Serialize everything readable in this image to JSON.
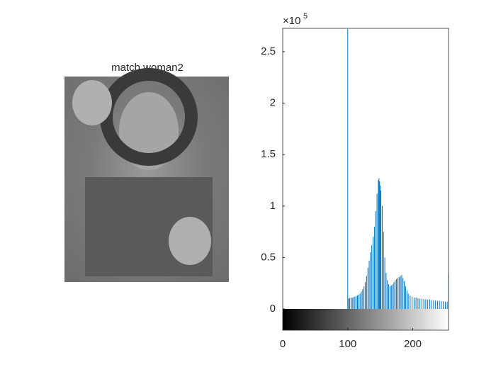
{
  "image_panel": {
    "title": "match woman2"
  },
  "chart_data": {
    "type": "histogram-stem",
    "color": "#0072BD",
    "y_exponent_base": "×10",
    "y_exponent": "5",
    "xlim": [
      0,
      255
    ],
    "xticks": [
      0,
      100,
      200
    ],
    "ylim": [
      0,
      272700
    ],
    "yticks": [
      0,
      {
        "value": 50000,
        "label": "0.5"
      },
      {
        "value": 100000,
        "label": "1"
      },
      {
        "value": 150000,
        "label": "1.5"
      },
      {
        "value": 200000,
        "label": "2"
      },
      {
        "value": 250000,
        "label": "2.5"
      }
    ],
    "colorbar": true,
    "x": [
      100,
      101,
      103,
      105,
      107,
      109,
      111,
      113,
      115,
      117,
      119,
      121,
      123,
      125,
      127,
      129,
      131,
      133,
      135,
      137,
      139,
      141,
      143,
      145,
      147,
      148,
      149,
      150,
      151,
      153,
      155,
      157,
      159,
      161,
      163,
      165,
      167,
      169,
      171,
      173,
      175,
      177,
      179,
      181,
      183,
      185,
      187,
      189,
      191,
      193,
      196,
      199,
      202,
      205,
      208,
      211,
      214,
      217,
      220,
      223,
      226,
      229,
      232,
      235,
      238,
      241,
      244,
      247,
      250,
      253,
      255
    ],
    "values": [
      272000,
      10000,
      10500,
      11000,
      11000,
      11500,
      12000,
      12500,
      13000,
      14000,
      15000,
      17000,
      19000,
      22000,
      26000,
      32000,
      40000,
      47000,
      55000,
      62000,
      70000,
      80000,
      95000,
      112000,
      125000,
      127000,
      124000,
      120000,
      115000,
      100000,
      75000,
      50000,
      35000,
      28000,
      24000,
      22000,
      23000,
      24000,
      26000,
      28000,
      29000,
      30000,
      31000,
      32000,
      33000,
      30000,
      27000,
      22000,
      18000,
      15000,
      13000,
      12000,
      11000,
      11000,
      10500,
      10000,
      10000,
      9500,
      9500,
      9000,
      9000,
      8500,
      8500,
      8000,
      8000,
      8000,
      7500,
      7500,
      7000,
      7000,
      35000
    ]
  }
}
